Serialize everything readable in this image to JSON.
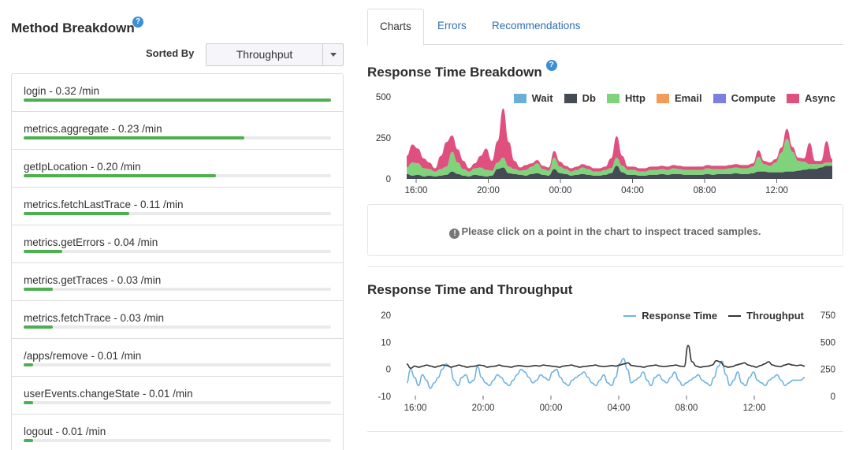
{
  "left": {
    "title": "Method Breakdown",
    "help_glyph": "?",
    "sorted_by_label": "Sorted By",
    "sort_select_value": "Throughput",
    "methods": [
      {
        "label": "login - 0.32 /min",
        "throughput": 0.32
      },
      {
        "label": "metrics.aggregate - 0.23 /min",
        "throughput": 0.23
      },
      {
        "label": "getIpLocation - 0.20 /min",
        "throughput": 0.2
      },
      {
        "label": "metrics.fetchLastTrace - 0.11 /min",
        "throughput": 0.11
      },
      {
        "label": "metrics.getErrors - 0.04 /min",
        "throughput": 0.04
      },
      {
        "label": "metrics.getTraces - 0.03 /min",
        "throughput": 0.03
      },
      {
        "label": "metrics.fetchTrace - 0.03 /min",
        "throughput": 0.03
      },
      {
        "label": "/apps/remove - 0.01 /min",
        "throughput": 0.01
      },
      {
        "label": "userEvents.changeState - 0.01 /min",
        "throughput": 0.01
      },
      {
        "label": "logout - 0.01 /min",
        "throughput": 0.01
      }
    ],
    "bar_color": "#4caf50"
  },
  "tabs": [
    "Charts",
    "Errors",
    "Recommendations"
  ],
  "active_tab": "Charts",
  "info_icon_glyph": "!",
  "info_message": "Please click on a point in the chart to inspect traced samples.",
  "chart_data": [
    {
      "type": "area",
      "title": "Response Time Breakdown",
      "stacked": true,
      "x_ticks": [
        "16:00",
        "20:00",
        "00:00",
        "04:00",
        "08:00",
        "12:00"
      ],
      "y_ticks": [
        "500",
        "250",
        "0"
      ],
      "ylim": [
        0,
        500
      ],
      "legend_position": "top-right",
      "series": [
        {
          "name": "Wait",
          "color": "#6baed6",
          "values": []
        },
        {
          "name": "Db",
          "color": "#454b54",
          "values": [
            30,
            20,
            25,
            15,
            20,
            15,
            20,
            25,
            45,
            30,
            20,
            15,
            25,
            20,
            15,
            20,
            60,
            70,
            35,
            30,
            25,
            20,
            30,
            35,
            25,
            20,
            60,
            35,
            30,
            20,
            25,
            30,
            25,
            20,
            20,
            25,
            35,
            80,
            40,
            25,
            25,
            20,
            20,
            25,
            25,
            30,
            25,
            30,
            30,
            25,
            25,
            25,
            25,
            30,
            25,
            30,
            30,
            30,
            35,
            30,
            30,
            35,
            45,
            45,
            40,
            40,
            40,
            45,
            45,
            50,
            55,
            60,
            60,
            70,
            80,
            80
          ]
        },
        {
          "name": "Http",
          "color": "#7ed37b",
          "values": [
            40,
            80,
            70,
            50,
            40,
            30,
            40,
            50,
            120,
            70,
            40,
            30,
            40,
            50,
            40,
            30,
            40,
            60,
            40,
            30,
            25,
            35,
            45,
            60,
            35,
            30,
            70,
            40,
            30,
            25,
            30,
            40,
            35,
            25,
            25,
            30,
            30,
            50,
            40,
            30,
            30,
            25,
            25,
            30,
            30,
            30,
            30,
            35,
            30,
            30,
            30,
            30,
            30,
            35,
            35,
            30,
            30,
            35,
            35,
            35,
            35,
            40,
            90,
            45,
            40,
            60,
            120,
            200,
            120,
            60,
            50,
            30,
            30,
            20,
            20,
            20
          ]
        },
        {
          "name": "Email",
          "color": "#f39c5a",
          "values": []
        },
        {
          "name": "Compute",
          "color": "#7b7fe0",
          "values": []
        },
        {
          "name": "Async",
          "color": "#e0507e",
          "values": [
            70,
            110,
            90,
            60,
            40,
            20,
            80,
            150,
            100,
            80,
            50,
            20,
            30,
            70,
            130,
            60,
            130,
            300,
            150,
            50,
            20,
            30,
            20,
            20,
            20,
            20,
            40,
            30,
            20,
            20,
            20,
            20,
            20,
            20,
            20,
            20,
            60,
            130,
            60,
            20,
            20,
            20,
            20,
            20,
            20,
            20,
            20,
            20,
            20,
            20,
            20,
            20,
            20,
            20,
            20,
            20,
            20,
            20,
            20,
            20,
            20,
            20,
            40,
            20,
            20,
            20,
            30,
            60,
            30,
            20,
            20,
            130,
            20,
            20,
            130,
            20
          ]
        }
      ]
    },
    {
      "type": "line",
      "title": "Response Time and Throughput",
      "x_ticks": [
        "16:00",
        "20:00",
        "00:00",
        "04:00",
        "08:00",
        "12:00"
      ],
      "y_left_ticks": [
        "20",
        "10",
        "0",
        "-10"
      ],
      "y_right_ticks": [
        "750",
        "500",
        "250",
        "0"
      ],
      "ylim_left": [
        -10,
        20
      ],
      "ylim_right": [
        0,
        750
      ],
      "legend_position": "top-right",
      "series": [
        {
          "name": "Response Time",
          "color": "#6eb3e0",
          "axis": "left",
          "values": [
            -5,
            0,
            -3,
            -6,
            -2,
            -4,
            -7,
            -5,
            -3,
            0,
            2,
            1,
            -4,
            -6,
            -3,
            -2,
            -5,
            -4,
            1,
            -3,
            -5,
            -6,
            -4,
            -2,
            -3,
            -5,
            -6,
            -4,
            -2,
            0,
            -1,
            -3,
            -5,
            -4,
            -2,
            -3,
            -4,
            -1,
            0,
            -3,
            -5,
            -6,
            -4,
            -3,
            -2,
            -1,
            -3,
            -5,
            -6,
            -4,
            -2,
            -5,
            -6,
            -3,
            2,
            4,
            0,
            -5,
            -4,
            -3,
            -1,
            -4,
            -6,
            -3,
            -2,
            -4,
            -5,
            -3,
            -1,
            -4,
            -6,
            -5,
            -4,
            -3,
            -2,
            -4,
            -5,
            -6,
            -3,
            1,
            3,
            -2,
            -6,
            -4,
            -1,
            -5,
            -6,
            -3,
            -1,
            -4,
            -5,
            -6,
            -4,
            -3,
            -2,
            -4,
            -6,
            -5,
            -4,
            -4,
            -4,
            -3
          ]
        },
        {
          "name": "Throughput",
          "color": "#333333",
          "axis": "right",
          "values": [
            300,
            260,
            280,
            270,
            280,
            290,
            280,
            270,
            280,
            290,
            285,
            270,
            280,
            290,
            280,
            270,
            275,
            280,
            290,
            285,
            270,
            275,
            280,
            290,
            280,
            275,
            270,
            280,
            285,
            280,
            275,
            280,
            285,
            280,
            290,
            285,
            280,
            275,
            270,
            280,
            285,
            290,
            280,
            270,
            275,
            280,
            285,
            290,
            280,
            275,
            280,
            285,
            280,
            290,
            300,
            310,
            285,
            280,
            275,
            270,
            280,
            285,
            290,
            280,
            275,
            280,
            285,
            290,
            280,
            275,
            470,
            320,
            280,
            270,
            275,
            280,
            290,
            330,
            320,
            280,
            270,
            275,
            290,
            300,
            310,
            290,
            280,
            270,
            285,
            300,
            320,
            290,
            280,
            275,
            290,
            300,
            290,
            285,
            290,
            280
          ]
        }
      ]
    }
  ]
}
